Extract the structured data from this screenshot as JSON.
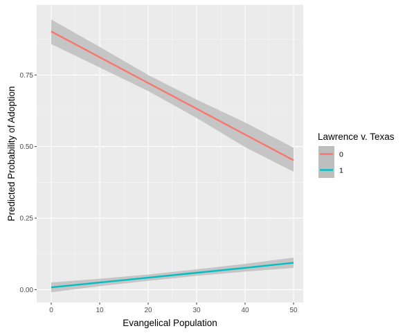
{
  "chart_data": {
    "type": "line",
    "xlabel": "Evangelical Population",
    "ylabel": "Predicted Probability of Adoption",
    "xlim": [
      -3,
      52
    ],
    "ylim": [
      -0.045,
      0.995
    ],
    "x_ticks": [
      0,
      10,
      20,
      30,
      40,
      50
    ],
    "x_tick_labels": [
      "0",
      "10",
      "20",
      "30",
      "40",
      "50"
    ],
    "y_ticks": [
      0,
      0.25,
      0.5,
      0.75
    ],
    "y_tick_labels": [
      "0.00",
      "0.25",
      "0.50",
      "0.75"
    ],
    "grid": true,
    "legend": {
      "title": "Lawrence v. Texas",
      "position": "right"
    },
    "series": [
      {
        "name": "0",
        "color": "#F8766D",
        "x": [
          0,
          10,
          20,
          30,
          40,
          50
        ],
        "y": [
          0.902,
          0.812,
          0.722,
          0.632,
          0.542,
          0.452
        ],
        "lower": [
          0.858,
          0.776,
          0.694,
          0.6,
          0.498,
          0.412
        ],
        "upper": [
          0.944,
          0.848,
          0.75,
          0.664,
          0.584,
          0.496
        ]
      },
      {
        "name": "1",
        "color": "#00BFC4",
        "x": [
          0,
          10,
          20,
          30,
          40,
          50
        ],
        "y": [
          0.008,
          0.025,
          0.042,
          0.059,
          0.076,
          0.094
        ],
        "lower": [
          -0.009,
          0.012,
          0.031,
          0.048,
          0.063,
          0.076
        ],
        "upper": [
          0.025,
          0.038,
          0.053,
          0.071,
          0.09,
          0.112
        ]
      }
    ],
    "ribbon_color": "#BEBEBE"
  }
}
